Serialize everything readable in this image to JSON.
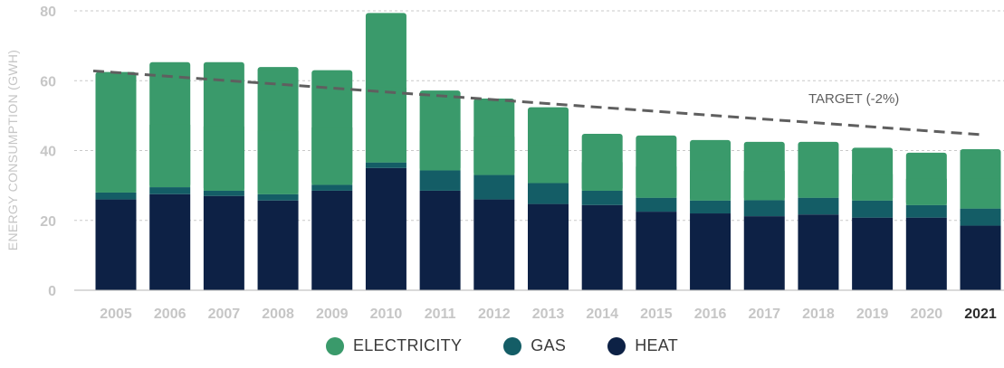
{
  "chart_data": {
    "type": "bar",
    "stacked": true,
    "categories": [
      "2005",
      "2006",
      "2007",
      "2008",
      "2009",
      "2010",
      "2011",
      "2012",
      "2013",
      "2014",
      "2015",
      "2016",
      "2017",
      "2018",
      "2019",
      "2020",
      "2021"
    ],
    "series": [
      {
        "name": "HEAT",
        "color": "#0d2145",
        "values": [
          26,
          27.5,
          27,
          25.7,
          28.5,
          35,
          28.5,
          26,
          24.7,
          24.4,
          22.5,
          22,
          21.2,
          21.7,
          20.8,
          20.8,
          18.5
        ]
      },
      {
        "name": "GAS",
        "color": "#145d66",
        "values": [
          2,
          2,
          1.5,
          1.8,
          1.7,
          1.6,
          5.8,
          7,
          6,
          4.1,
          4,
          3.7,
          4.6,
          4.8,
          4.9,
          3.6,
          4.9
        ]
      },
      {
        "name": "ELECTRICITY",
        "color": "#3a9a6b",
        "values": [
          34.5,
          35.8,
          36.8,
          36.4,
          32.8,
          42.8,
          22.9,
          21.9,
          21.7,
          16.3,
          17.8,
          17.3,
          16.7,
          16,
          15.1,
          15,
          17
        ]
      }
    ],
    "ylabel": "ENERGY CONSUMPTION (GWH)",
    "ylim": [
      0,
      80
    ],
    "yticks": [
      "0",
      "20",
      "40",
      "60",
      "80"
    ],
    "grid": true,
    "target": {
      "label": "TARGET (-2%)",
      "start": [
        "2005",
        62.8
      ],
      "end": [
        "2021",
        44.5
      ]
    },
    "legend_position": "bottom-center",
    "legend": [
      {
        "name": "ELECTRICITY",
        "color": "#3a9a6b"
      },
      {
        "name": "GAS",
        "color": "#145d66"
      },
      {
        "name": "HEAT",
        "color": "#0d2145"
      }
    ],
    "highlight_category": "2021"
  }
}
